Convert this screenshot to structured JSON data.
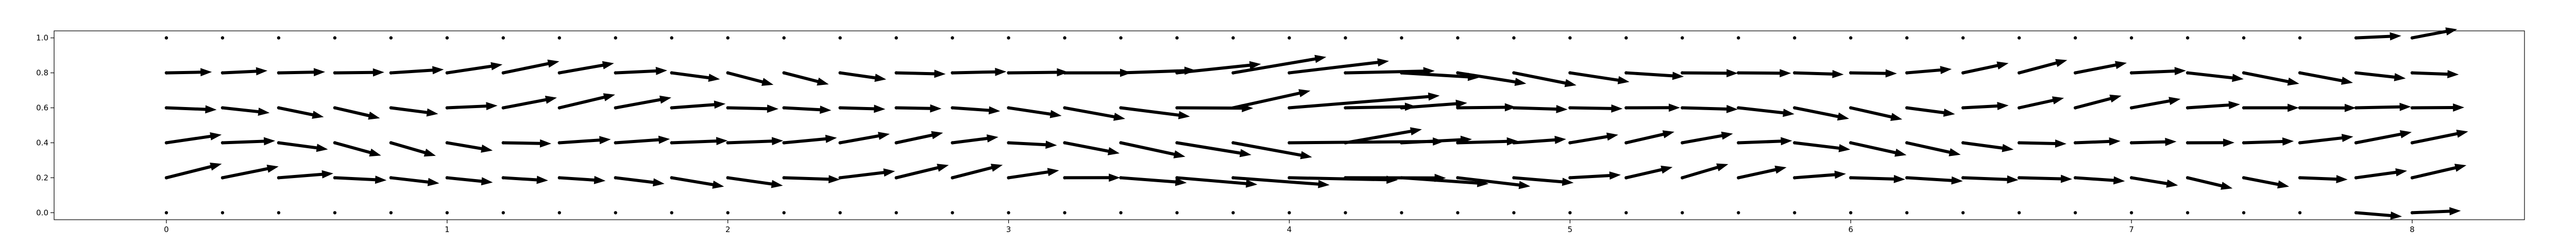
{
  "chart_data": {
    "type": "quiver",
    "title": "",
    "xlabel": "",
    "ylabel": "",
    "xlim": [
      -0.4,
      8.4
    ],
    "ylim": [
      -0.04,
      1.04
    ],
    "x_ticks": [
      "0",
      "1",
      "2",
      "3",
      "4",
      "5",
      "6",
      "7",
      "8"
    ],
    "y_ticks": [
      "0.0",
      "0.2",
      "0.4",
      "0.6",
      "0.8",
      "1.0"
    ],
    "grid": false,
    "legend": "none",
    "arrow_color": "#000000",
    "point_color": "#000000",
    "field": {
      "description_of_grid": "sample points every 0.2 in x from 0 to 8, every 0.2 in y from 0 to 1; an obstacle centred at x=4, y=0.5",
      "x_start": 0,
      "x_end": 8,
      "x_step": 0.2,
      "y_values": [
        0.0,
        0.2,
        0.4,
        0.6,
        0.8,
        1.0
      ],
      "inflow_speed": 0.18,
      "obstacle_center": [
        4.0,
        0.5
      ],
      "obstacle_radius": 0.12
    }
  }
}
